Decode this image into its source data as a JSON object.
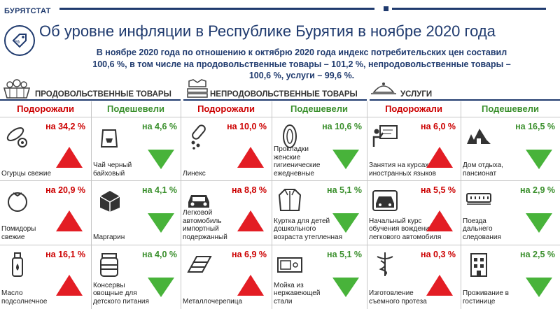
{
  "header": {
    "brand": "БУРЯТСТАТ",
    "title": "Об уровне инфляции в Республике Бурятия в ноябре 2020 года",
    "intro_lines": [
      "В  ноябре  2020 года  по отношению   к октябрю   2020 года  индекс потребительских цен составил",
      "100,6 %, в  том числе  на  продовольственные  товары – 101,2 %,  непродовольственные  товары –",
      "100,6 %, услуги – 99,6 %."
    ]
  },
  "columns": {
    "up": "Подорожали",
    "down": "Подешевели"
  },
  "groups": [
    {
      "label": "ПРОДОВОЛЬСТВЕННЫЕ ТОВАРЫ",
      "icon": "grocery-basket-icon",
      "up": [
        {
          "pct": "на 34,2 %",
          "name": "Огурцы свежие",
          "icon": "cucumber-icon"
        },
        {
          "pct": "на 20,9 %",
          "name": "Помидоры свежие",
          "icon": "tomato-icon"
        },
        {
          "pct": "на 16,1 %",
          "name": "Масло подсолнечное",
          "icon": "oil-bottle-icon"
        }
      ],
      "down": [
        {
          "pct": "на 4,6 %",
          "name": "Чай черный байховый",
          "icon": "tea-pack-icon"
        },
        {
          "pct": "на 4,1 %",
          "name": "Маргарин",
          "icon": "margarine-icon"
        },
        {
          "pct": "на 4,0 %",
          "name": "Консервы овощные для детского питания",
          "icon": "jar-icon"
        }
      ]
    },
    {
      "label": "НЕПРОДОВОЛЬСТВЕННЫЕ ТОВАРЫ",
      "icon": "clothes-stack-icon",
      "up": [
        {
          "pct": "на 10,0 %",
          "name": "Линекс",
          "icon": "pills-icon"
        },
        {
          "pct": "на 8,8 %",
          "name": "Легковой автомобиль импортный подержанный",
          "icon": "car-icon"
        },
        {
          "pct": "на 6,9 %",
          "name": "Металлочерепица",
          "icon": "roof-tile-icon"
        }
      ],
      "down": [
        {
          "pct": "на 10,6 %",
          "name": "Прокладки женские гигиенические ежедневные",
          "icon": "pad-icon"
        },
        {
          "pct": "на 5,1 %",
          "name": "Куртка для детей дошкольного возраста утепленная",
          "icon": "jacket-icon"
        },
        {
          "pct": "на 5,1 %",
          "name": "Мойка из нержавеющей стали",
          "icon": "sink-icon"
        }
      ]
    },
    {
      "label": "УСЛУГИ",
      "icon": "service-cloche-icon",
      "up": [
        {
          "pct": "на 6,0 %",
          "name": "Занятия на курсах иностранных  языков",
          "icon": "teacher-board-icon"
        },
        {
          "pct": "на 5,5 %",
          "name": "Начальный курс обучения вождению легкового автомобиля",
          "icon": "driving-car-icon"
        },
        {
          "pct": "на 0,3 %",
          "name": "Изготовление съемного протеза",
          "icon": "medical-caduceus-icon"
        }
      ],
      "down": [
        {
          "pct": "на 16,5 %",
          "name": "Дом отдыха, пансионат",
          "icon": "resort-house-icon"
        },
        {
          "pct": "на 2,9 %",
          "name": "Поезда дальнего следования",
          "icon": "train-car-icon"
        },
        {
          "pct": "на 2,5 %",
          "name": "Проживание в гостинице",
          "icon": "hotel-icon"
        }
      ]
    }
  ]
}
